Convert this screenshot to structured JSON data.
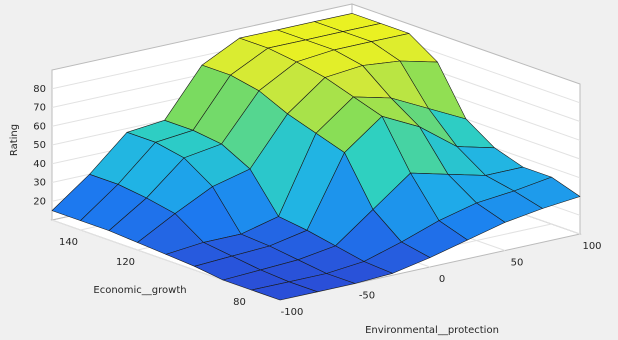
{
  "chart_data": {
    "type": "surface",
    "xlabel": "Environmental__protection",
    "ylabel": "Economic__growth",
    "zlabel": "Rating",
    "x": [
      -100,
      -75,
      -50,
      -25,
      0,
      25,
      50,
      75,
      100
    ],
    "y": [
      70,
      80,
      90,
      100,
      110,
      120,
      130,
      140,
      150
    ],
    "z": [
      [
        10,
        10,
        10,
        11,
        15,
        20,
        25,
        28,
        30
      ],
      [
        10,
        10,
        10,
        12,
        18,
        25,
        30,
        32,
        35
      ],
      [
        10,
        11,
        12,
        15,
        30,
        45,
        40,
        35,
        35
      ],
      [
        12,
        13,
        14,
        18,
        55,
        70,
        60,
        45,
        40
      ],
      [
        13,
        15,
        15,
        20,
        60,
        75,
        70,
        60,
        50
      ],
      [
        14,
        25,
        35,
        40,
        65,
        80,
        82,
        80,
        75
      ],
      [
        15,
        28,
        45,
        48,
        72,
        83,
        85,
        85,
        85
      ],
      [
        15,
        30,
        48,
        50,
        75,
        85,
        85,
        85,
        85
      ],
      [
        15,
        30,
        48,
        50,
        75,
        85,
        85,
        85,
        85
      ]
    ],
    "xlim": [
      -100,
      100
    ],
    "ylim": [
      70,
      150
    ],
    "zlim": [
      10,
      90
    ],
    "xticks": [
      -100,
      -50,
      0,
      50,
      100
    ],
    "yticks": [
      80,
      120,
      140
    ],
    "zticks": [
      20,
      30,
      40,
      50,
      60,
      70,
      80
    ],
    "colormap": [
      "#2a4fd8",
      "#1c7cf0",
      "#1fb0e8",
      "#2fd0c0",
      "#7fdc5a",
      "#d0e83a",
      "#f9f614"
    ]
  }
}
